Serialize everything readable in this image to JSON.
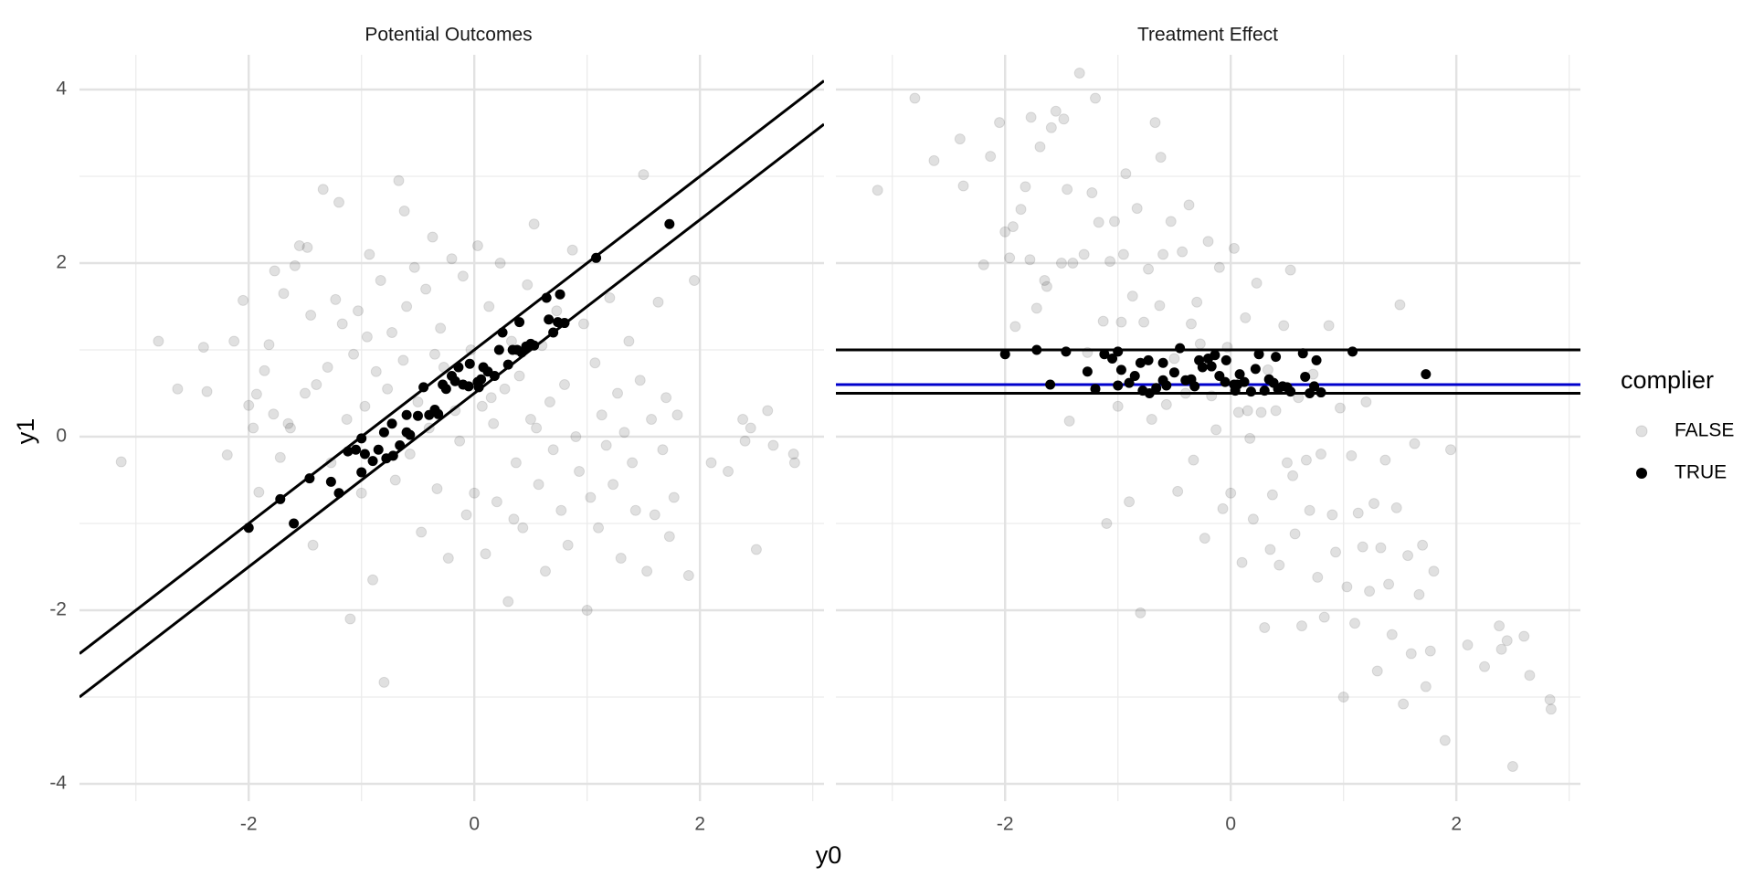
{
  "chart_data": {
    "type": "scatter",
    "xlabel": "y0",
    "ylabel": "y1",
    "xlim": [
      -3.5,
      3.1
    ],
    "ylim": [
      -4.2,
      4.4
    ],
    "x_ticks": [
      -2,
      0,
      2
    ],
    "x_tick_labels": [
      "-2",
      "0",
      "2"
    ],
    "y_ticks": [
      -4,
      -2,
      0,
      2,
      4
    ],
    "y_tick_labels": [
      "-4",
      "-2",
      "0",
      "2",
      "4"
    ],
    "grid": true,
    "legend": {
      "title": "complier",
      "position": "right",
      "entries": [
        {
          "label": "FALSE",
          "color": "#000000",
          "opacity": 0.12
        },
        {
          "label": "TRUE",
          "color": "#000000",
          "opacity": 1
        }
      ]
    },
    "facets": [
      {
        "title": "Potential Outcomes",
        "lines": [
          {
            "intercept": 1.0,
            "slope": 1,
            "color": "#000000"
          },
          {
            "intercept": 0.5,
            "slope": 1,
            "color": "#000000"
          }
        ]
      },
      {
        "title": "Treatment Effect",
        "lines": [
          {
            "intercept": 1.0,
            "slope": 0,
            "color": "#000000"
          },
          {
            "intercept": 0.6,
            "slope": 0,
            "color": "#0000cc"
          },
          {
            "intercept": 0.5,
            "slope": 0,
            "color": "#000000"
          }
        ]
      }
    ],
    "series": [
      {
        "name": "TRUE",
        "points": [
          [
            -2.0,
            -1.05
          ],
          [
            -1.72,
            -0.72
          ],
          [
            -1.6,
            -1.0
          ],
          [
            -1.46,
            -0.48
          ],
          [
            -1.27,
            -0.52
          ],
          [
            -1.2,
            -0.65
          ],
          [
            -1.12,
            -0.17
          ],
          [
            -1.05,
            -0.15
          ],
          [
            -1.0,
            -0.02
          ],
          [
            -1.0,
            -0.41
          ],
          [
            -0.97,
            -0.2
          ],
          [
            -0.9,
            -0.28
          ],
          [
            -0.85,
            -0.15
          ],
          [
            -0.8,
            0.05
          ],
          [
            -0.78,
            -0.25
          ],
          [
            -0.73,
            0.15
          ],
          [
            -0.72,
            -0.22
          ],
          [
            -0.66,
            -0.1
          ],
          [
            -0.6,
            0.05
          ],
          [
            -0.6,
            0.25
          ],
          [
            -0.57,
            0.02
          ],
          [
            -0.5,
            0.24
          ],
          [
            -0.45,
            0.57
          ],
          [
            -0.4,
            0.25
          ],
          [
            -0.35,
            0.31
          ],
          [
            -0.32,
            0.26
          ],
          [
            -0.28,
            0.6
          ],
          [
            -0.25,
            0.55
          ],
          [
            -0.2,
            0.7
          ],
          [
            -0.17,
            0.64
          ],
          [
            -0.14,
            0.8
          ],
          [
            -0.1,
            0.6
          ],
          [
            -0.05,
            0.58
          ],
          [
            -0.04,
            0.84
          ],
          [
            0.03,
            0.63
          ],
          [
            0.04,
            0.57
          ],
          [
            0.06,
            0.66
          ],
          [
            0.08,
            0.8
          ],
          [
            0.12,
            0.75
          ],
          [
            0.18,
            0.7
          ],
          [
            0.22,
            1.0
          ],
          [
            0.25,
            1.2
          ],
          [
            0.3,
            0.83
          ],
          [
            0.34,
            1.0
          ],
          [
            0.38,
            1.0
          ],
          [
            0.4,
            1.32
          ],
          [
            0.42,
            0.97
          ],
          [
            0.46,
            1.04
          ],
          [
            0.5,
            1.07
          ],
          [
            0.53,
            1.05
          ],
          [
            0.64,
            1.6
          ],
          [
            0.66,
            1.35
          ],
          [
            0.7,
            1.2
          ],
          [
            0.74,
            1.32
          ],
          [
            0.76,
            1.64
          ],
          [
            0.8,
            1.31
          ],
          [
            1.08,
            2.06
          ],
          [
            1.73,
            2.45
          ]
        ]
      },
      {
        "name": "FALSE",
        "points": [
          [
            -3.13,
            -0.29
          ],
          [
            -2.8,
            1.1
          ],
          [
            -2.63,
            0.55
          ],
          [
            -2.4,
            1.03
          ],
          [
            -2.37,
            0.52
          ],
          [
            -2.19,
            -0.21
          ],
          [
            -2.13,
            1.1
          ],
          [
            -2.05,
            1.57
          ],
          [
            -2.0,
            0.36
          ],
          [
            -1.96,
            0.1
          ],
          [
            -1.93,
            0.49
          ],
          [
            -1.91,
            -0.64
          ],
          [
            -1.86,
            0.76
          ],
          [
            -1.82,
            1.06
          ],
          [
            -1.78,
            0.26
          ],
          [
            -1.77,
            1.91
          ],
          [
            -1.72,
            -0.24
          ],
          [
            -1.69,
            1.65
          ],
          [
            -1.63,
            0.1
          ],
          [
            -1.59,
            1.97
          ],
          [
            -1.55,
            2.2
          ],
          [
            -1.48,
            2.18
          ],
          [
            -1.45,
            1.4
          ],
          [
            -1.43,
            -1.25
          ],
          [
            -1.4,
            0.6
          ],
          [
            -1.34,
            2.85
          ],
          [
            -1.3,
            0.8
          ],
          [
            -1.27,
            -0.3
          ],
          [
            -1.23,
            1.58
          ],
          [
            -1.2,
            2.7
          ],
          [
            -1.17,
            1.3
          ],
          [
            -1.13,
            0.2
          ],
          [
            -1.1,
            -2.1
          ],
          [
            -1.07,
            0.95
          ],
          [
            -1.03,
            1.45
          ],
          [
            -1.0,
            -0.65
          ],
          [
            -0.97,
            0.35
          ],
          [
            -0.93,
            2.1
          ],
          [
            -0.9,
            -1.65
          ],
          [
            -0.87,
            0.75
          ],
          [
            -0.83,
            1.8
          ],
          [
            -0.8,
            -2.83
          ],
          [
            -0.77,
            0.55
          ],
          [
            -0.73,
            1.2
          ],
          [
            -0.7,
            -0.5
          ],
          [
            -0.67,
            2.95
          ],
          [
            -0.63,
            0.88
          ],
          [
            -0.6,
            1.5
          ],
          [
            -0.57,
            -0.2
          ],
          [
            -0.53,
            1.95
          ],
          [
            -0.5,
            0.4
          ],
          [
            -0.47,
            -1.1
          ],
          [
            -0.43,
            1.7
          ],
          [
            -0.4,
            0.1
          ],
          [
            -0.37,
            2.3
          ],
          [
            -0.33,
            -0.6
          ],
          [
            -0.3,
            1.25
          ],
          [
            -0.27,
            0.8
          ],
          [
            -0.23,
            -1.4
          ],
          [
            -0.2,
            2.05
          ],
          [
            -0.17,
            0.3
          ],
          [
            -0.13,
            -0.05
          ],
          [
            -0.1,
            1.85
          ],
          [
            -0.07,
            -0.9
          ],
          [
            -0.03,
            1.0
          ],
          [
            0.0,
            -0.65
          ],
          [
            0.03,
            2.2
          ],
          [
            0.07,
            0.35
          ],
          [
            0.1,
            -1.35
          ],
          [
            0.13,
            1.5
          ],
          [
            0.17,
            0.15
          ],
          [
            0.2,
            -0.75
          ],
          [
            0.23,
            2.0
          ],
          [
            0.27,
            0.55
          ],
          [
            0.3,
            -1.9
          ],
          [
            0.33,
            1.1
          ],
          [
            0.37,
            -0.3
          ],
          [
            0.4,
            0.7
          ],
          [
            0.43,
            -1.05
          ],
          [
            0.47,
            1.75
          ],
          [
            0.5,
            0.2
          ],
          [
            0.53,
            2.45
          ],
          [
            0.57,
            -0.55
          ],
          [
            0.6,
            1.05
          ],
          [
            0.63,
            -1.55
          ],
          [
            0.67,
            0.4
          ],
          [
            0.7,
            -0.15
          ],
          [
            0.73,
            1.45
          ],
          [
            0.77,
            -0.85
          ],
          [
            0.8,
            0.6
          ],
          [
            0.83,
            -1.25
          ],
          [
            0.87,
            2.15
          ],
          [
            0.9,
            0.0
          ],
          [
            0.93,
            -0.4
          ],
          [
            0.97,
            1.3
          ],
          [
            1.0,
            -2.0
          ],
          [
            1.03,
            -0.7
          ],
          [
            1.07,
            0.85
          ],
          [
            1.1,
            -1.05
          ],
          [
            1.13,
            0.25
          ],
          [
            1.17,
            -0.1
          ],
          [
            1.2,
            1.6
          ],
          [
            1.23,
            -0.55
          ],
          [
            1.27,
            0.5
          ],
          [
            1.3,
            -1.4
          ],
          [
            1.33,
            0.05
          ],
          [
            1.37,
            1.1
          ],
          [
            1.4,
            -0.3
          ],
          [
            1.43,
            -0.85
          ],
          [
            1.47,
            0.65
          ],
          [
            1.5,
            3.02
          ],
          [
            1.53,
            -1.55
          ],
          [
            1.57,
            0.2
          ],
          [
            1.6,
            -0.9
          ],
          [
            1.63,
            1.55
          ],
          [
            1.67,
            -0.15
          ],
          [
            1.7,
            0.45
          ],
          [
            1.73,
            -1.15
          ],
          [
            1.77,
            -0.7
          ],
          [
            1.8,
            0.25
          ],
          [
            1.9,
            -1.6
          ],
          [
            1.95,
            1.8
          ],
          [
            2.1,
            -0.3
          ],
          [
            2.25,
            -0.4
          ],
          [
            2.38,
            0.2
          ],
          [
            2.4,
            -0.05
          ],
          [
            2.45,
            0.1
          ],
          [
            2.5,
            -1.3
          ],
          [
            2.6,
            0.3
          ],
          [
            2.65,
            -0.1
          ],
          [
            2.83,
            -0.2
          ],
          [
            2.84,
            -0.3
          ],
          [
            -1.65,
            0.15
          ],
          [
            -1.5,
            0.5
          ],
          [
            -0.95,
            1.15
          ],
          [
            -0.62,
            2.6
          ],
          [
            -0.35,
            0.95
          ],
          [
            0.15,
            0.45
          ],
          [
            0.35,
            -0.95
          ],
          [
            0.55,
            0.1
          ]
        ]
      }
    ]
  }
}
